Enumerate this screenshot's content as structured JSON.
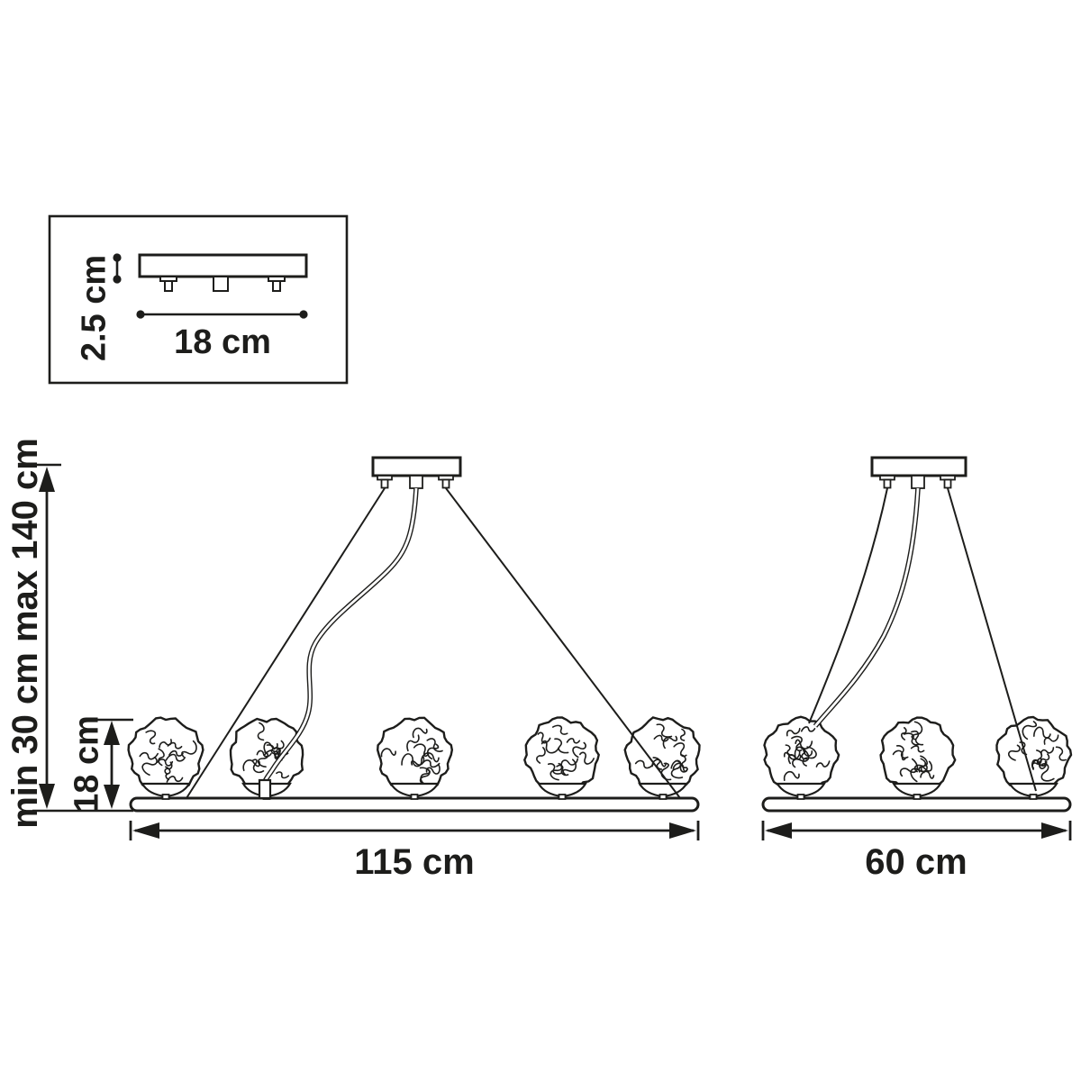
{
  "page": {
    "background": "#ffffff",
    "line_color": "#1d1d1b",
    "description": "Pendant chandelier dimension drawing"
  },
  "inset": {
    "name": "ceiling-plate",
    "height_label": "2.5 cm",
    "width_label": "18 cm"
  },
  "main_fixture": {
    "bulb_count": 5,
    "width_label": "115 cm",
    "drop_label": "min 30 cm max 140 cm",
    "shade_height_label": "18 cm"
  },
  "small_fixture": {
    "bulb_count": 3,
    "width_label": "60 cm"
  }
}
